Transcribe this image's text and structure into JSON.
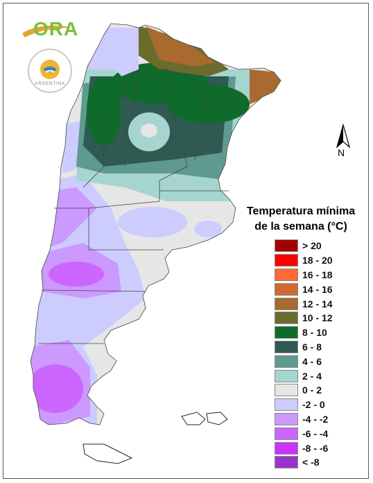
{
  "map": {
    "logo_text": "ORA",
    "seal_text": "ARGENTINA",
    "north_label": "N",
    "legend_title_line1": "Temperatura mínima",
    "legend_title_line2": "de la semana (°C)",
    "legend": [
      {
        "label": "> 20",
        "color": "#a50000"
      },
      {
        "label": "18 - 20",
        "color": "#ff0000"
      },
      {
        "label": "16 - 18",
        "color": "#ff6a33"
      },
      {
        "label": "14 - 16",
        "color": "#d26a2f"
      },
      {
        "label": "12 - 14",
        "color": "#a86a2e"
      },
      {
        "label": "10 - 12",
        "color": "#6b6b2e"
      },
      {
        "label": "8 - 10",
        "color": "#0f6b2b"
      },
      {
        "label": "6 - 8",
        "color": "#2f5a52"
      },
      {
        "label": "4 - 6",
        "color": "#5e9a90"
      },
      {
        "label": "2 - 4",
        "color": "#a6d5cf"
      },
      {
        "label": "0 - 2",
        "color": "#e6e6e6"
      },
      {
        "label": "-2 - 0",
        "color": "#ccccff"
      },
      {
        "label": "-4 - -2",
        "color": "#cc99ff"
      },
      {
        "label": "-6 - -4",
        "color": "#cc66ff"
      },
      {
        "label": "-8 - -6",
        "color": "#cc33ff"
      },
      {
        "label": "< -8",
        "color": "#9933cc"
      }
    ]
  }
}
